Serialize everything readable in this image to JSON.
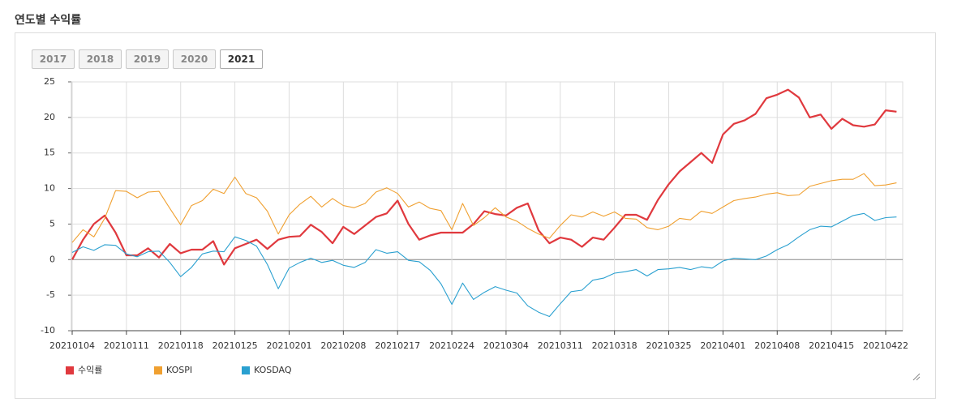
{
  "header": {
    "title": "연도별 수익률"
  },
  "tabs": [
    {
      "label": "2017",
      "active": false
    },
    {
      "label": "2018",
      "active": false
    },
    {
      "label": "2019",
      "active": false
    },
    {
      "label": "2020",
      "active": false
    },
    {
      "label": "2021",
      "active": true
    }
  ],
  "chart_data": {
    "type": "line",
    "categories": [
      "20210104",
      null,
      null,
      null,
      null,
      "20210111",
      null,
      null,
      null,
      null,
      "20210118",
      null,
      null,
      null,
      null,
      "20210125",
      null,
      null,
      null,
      null,
      "20210201",
      null,
      null,
      null,
      null,
      "20210208",
      null,
      null,
      null,
      null,
      "20210217",
      null,
      null,
      null,
      null,
      "20210224",
      null,
      null,
      null,
      null,
      "20210304",
      null,
      null,
      null,
      null,
      "20210311",
      null,
      null,
      null,
      null,
      "20210318",
      null,
      null,
      null,
      null,
      "20210325",
      null,
      null,
      null,
      null,
      "20210401",
      null,
      null,
      null,
      null,
      "20210408",
      null,
      null,
      null,
      null,
      "20210415",
      null,
      null,
      null,
      null,
      "20210422",
      null
    ],
    "series": [
      {
        "name": "수익률",
        "color": "#e0393e",
        "values": [
          0,
          2.8,
          5.0,
          6.2,
          3.8,
          0.6,
          0.6,
          1.6,
          0.3,
          2.2,
          0.9,
          1.4,
          1.4,
          2.6,
          -0.7,
          1.6,
          2.2,
          2.8,
          1.5,
          2.8,
          3.2,
          3.3,
          4.9,
          3.9,
          2.3,
          4.6,
          3.6,
          4.8,
          6.0,
          6.5,
          8.3,
          5.0,
          2.8,
          3.4,
          3.8,
          3.8,
          3.8,
          5.0,
          6.8,
          6.4,
          6.2,
          7.3,
          7.9,
          4.1,
          2.3,
          3.1,
          2.8,
          1.8,
          3.1,
          2.8,
          4.5,
          6.3,
          6.3,
          5.6,
          8.4,
          10.6,
          12.4,
          13.7,
          15.0,
          13.6,
          17.6,
          19.1,
          19.6,
          20.5,
          22.7,
          23.2,
          23.9,
          22.8,
          20.0,
          20.4,
          18.4,
          19.8,
          18.9,
          18.7,
          19.0,
          21.0,
          20.8
        ]
      },
      {
        "name": "KOSPI",
        "color": "#f0a030",
        "values": [
          2.4,
          4.2,
          3.2,
          5.8,
          9.7,
          9.6,
          8.7,
          9.5,
          9.6,
          7.2,
          4.9,
          7.6,
          8.3,
          9.9,
          9.3,
          11.6,
          9.3,
          8.7,
          6.8,
          3.6,
          6.3,
          7.8,
          8.9,
          7.4,
          8.6,
          7.6,
          7.3,
          7.9,
          9.5,
          10.1,
          9.3,
          7.4,
          8.1,
          7.2,
          6.9,
          4.2,
          7.9,
          4.8,
          5.9,
          7.3,
          6.0,
          5.4,
          4.4,
          3.6,
          3.0,
          4.8,
          6.3,
          6.0,
          6.7,
          6.1,
          6.7,
          5.8,
          5.7,
          4.5,
          4.2,
          4.7,
          5.8,
          5.6,
          6.8,
          6.5,
          7.4,
          8.3,
          8.6,
          8.8,
          9.2,
          9.4,
          9.0,
          9.1,
          10.3,
          10.7,
          11.1,
          11.3,
          11.3,
          12.1,
          10.4,
          10.5,
          10.8
        ]
      },
      {
        "name": "KOSDAQ",
        "color": "#2aa0d0",
        "values": [
          1.0,
          1.8,
          1.3,
          2.1,
          2.0,
          0.8,
          0.4,
          1.1,
          1.2,
          -0.4,
          -2.4,
          -1.1,
          0.8,
          1.2,
          1.1,
          3.2,
          2.7,
          1.9,
          -0.7,
          -4.1,
          -1.2,
          -0.4,
          0.2,
          -0.4,
          -0.1,
          -0.8,
          -1.1,
          -0.4,
          1.4,
          0.9,
          1.1,
          -0.1,
          -0.3,
          -1.5,
          -3.4,
          -6.3,
          -3.3,
          -5.6,
          -4.6,
          -3.8,
          -4.3,
          -4.7,
          -6.5,
          -7.4,
          -8.0,
          -6.2,
          -4.5,
          -4.3,
          -2.9,
          -2.6,
          -1.9,
          -1.7,
          -1.4,
          -2.3,
          -1.4,
          -1.3,
          -1.1,
          -1.4,
          -1.0,
          -1.2,
          -0.2,
          0.2,
          0.1,
          0.0,
          0.5,
          1.4,
          2.1,
          3.2,
          4.2,
          4.7,
          4.6,
          5.4,
          6.2,
          6.5,
          5.5,
          5.9,
          6.0
        ]
      }
    ],
    "ylim": [
      -10,
      25
    ],
    "yticks": [
      -10,
      -5,
      0,
      5,
      10,
      15,
      20,
      25
    ],
    "grid": true,
    "legend": "bottom-left"
  }
}
